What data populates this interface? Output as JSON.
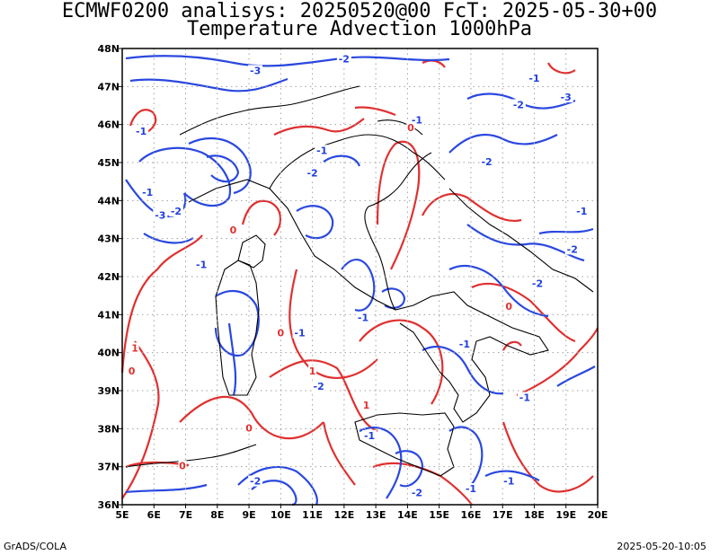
{
  "header": {
    "title_line1": "ECMWF0200 analisys: 20250520@00 FcT: 2025-05-30+00",
    "title_line2": "Temperature Advection 1000hPa"
  },
  "map": {
    "lon_range": [
      5,
      20
    ],
    "lat_range": [
      36,
      48
    ],
    "x_ticks": [
      "5E",
      "6E",
      "7E",
      "8E",
      "9E",
      "10E",
      "11E",
      "12E",
      "13E",
      "14E",
      "15E",
      "16E",
      "17E",
      "18E",
      "19E",
      "20E"
    ],
    "y_ticks": [
      "48N",
      "47N",
      "46N",
      "45N",
      "44N",
      "43N",
      "42N",
      "41N",
      "40N",
      "39N",
      "38N",
      "37N",
      "36N"
    ],
    "grid": "dotted",
    "colors": {
      "positive": "#e03030",
      "negative": "#2040e0",
      "coast": "#000000",
      "grid": "#a0a0a0"
    },
    "contour_labels": [
      {
        "text": "-3",
        "lon": 9.2,
        "lat": 47.4
      },
      {
        "text": "-2",
        "lon": 12.0,
        "lat": 47.7
      },
      {
        "text": "-1",
        "lon": 18.0,
        "lat": 47.2
      },
      {
        "text": "-3",
        "lon": 19.0,
        "lat": 46.7
      },
      {
        "text": "-2",
        "lon": 17.5,
        "lat": 46.5
      },
      {
        "text": "-1",
        "lon": 14.3,
        "lat": 46.1
      },
      {
        "text": "0",
        "lon": 14.1,
        "lat": 45.9
      },
      {
        "text": "-1",
        "lon": 5.6,
        "lat": 45.8
      },
      {
        "text": "-1",
        "lon": 11.3,
        "lat": 45.3
      },
      {
        "text": "-2",
        "lon": 16.5,
        "lat": 45.0
      },
      {
        "text": "-2",
        "lon": 11.0,
        "lat": 44.7
      },
      {
        "text": "-1",
        "lon": 5.8,
        "lat": 44.2
      },
      {
        "text": "-3",
        "lon": 6.2,
        "lat": 43.6
      },
      {
        "text": "-2",
        "lon": 6.7,
        "lat": 43.7
      },
      {
        "text": "0",
        "lon": 8.5,
        "lat": 43.2
      },
      {
        "text": "-1",
        "lon": 7.5,
        "lat": 42.3
      },
      {
        "text": "-1",
        "lon": 19.5,
        "lat": 43.7
      },
      {
        "text": "-2",
        "lon": 19.2,
        "lat": 42.7
      },
      {
        "text": "-2",
        "lon": 18.1,
        "lat": 41.8
      },
      {
        "text": "0",
        "lon": 17.2,
        "lat": 41.2
      },
      {
        "text": "-1",
        "lon": 12.6,
        "lat": 40.9
      },
      {
        "text": "0",
        "lon": 10.0,
        "lat": 40.5
      },
      {
        "text": "-1",
        "lon": 10.6,
        "lat": 40.5
      },
      {
        "text": "1",
        "lon": 5.4,
        "lat": 40.1
      },
      {
        "text": "0",
        "lon": 5.3,
        "lat": 39.5
      },
      {
        "text": "-1",
        "lon": 15.8,
        "lat": 40.2
      },
      {
        "text": "1",
        "lon": 11.0,
        "lat": 39.5
      },
      {
        "text": "-2",
        "lon": 11.2,
        "lat": 39.1
      },
      {
        "text": "1",
        "lon": 12.7,
        "lat": 38.6
      },
      {
        "text": "-1",
        "lon": 17.7,
        "lat": 38.8
      },
      {
        "text": "0",
        "lon": 9.0,
        "lat": 38.0
      },
      {
        "text": "-1",
        "lon": 12.8,
        "lat": 37.8
      },
      {
        "text": "0",
        "lon": 6.9,
        "lat": 37.0
      },
      {
        "text": "-2",
        "lon": 9.2,
        "lat": 36.6
      },
      {
        "text": "-2",
        "lon": 14.3,
        "lat": 36.3
      },
      {
        "text": "-1",
        "lon": 16.0,
        "lat": 36.4
      },
      {
        "text": "-1",
        "lon": 17.2,
        "lat": 36.6
      }
    ]
  },
  "footer": {
    "left": "GrADS/COLA",
    "right": "2025-05-20-10:05"
  }
}
